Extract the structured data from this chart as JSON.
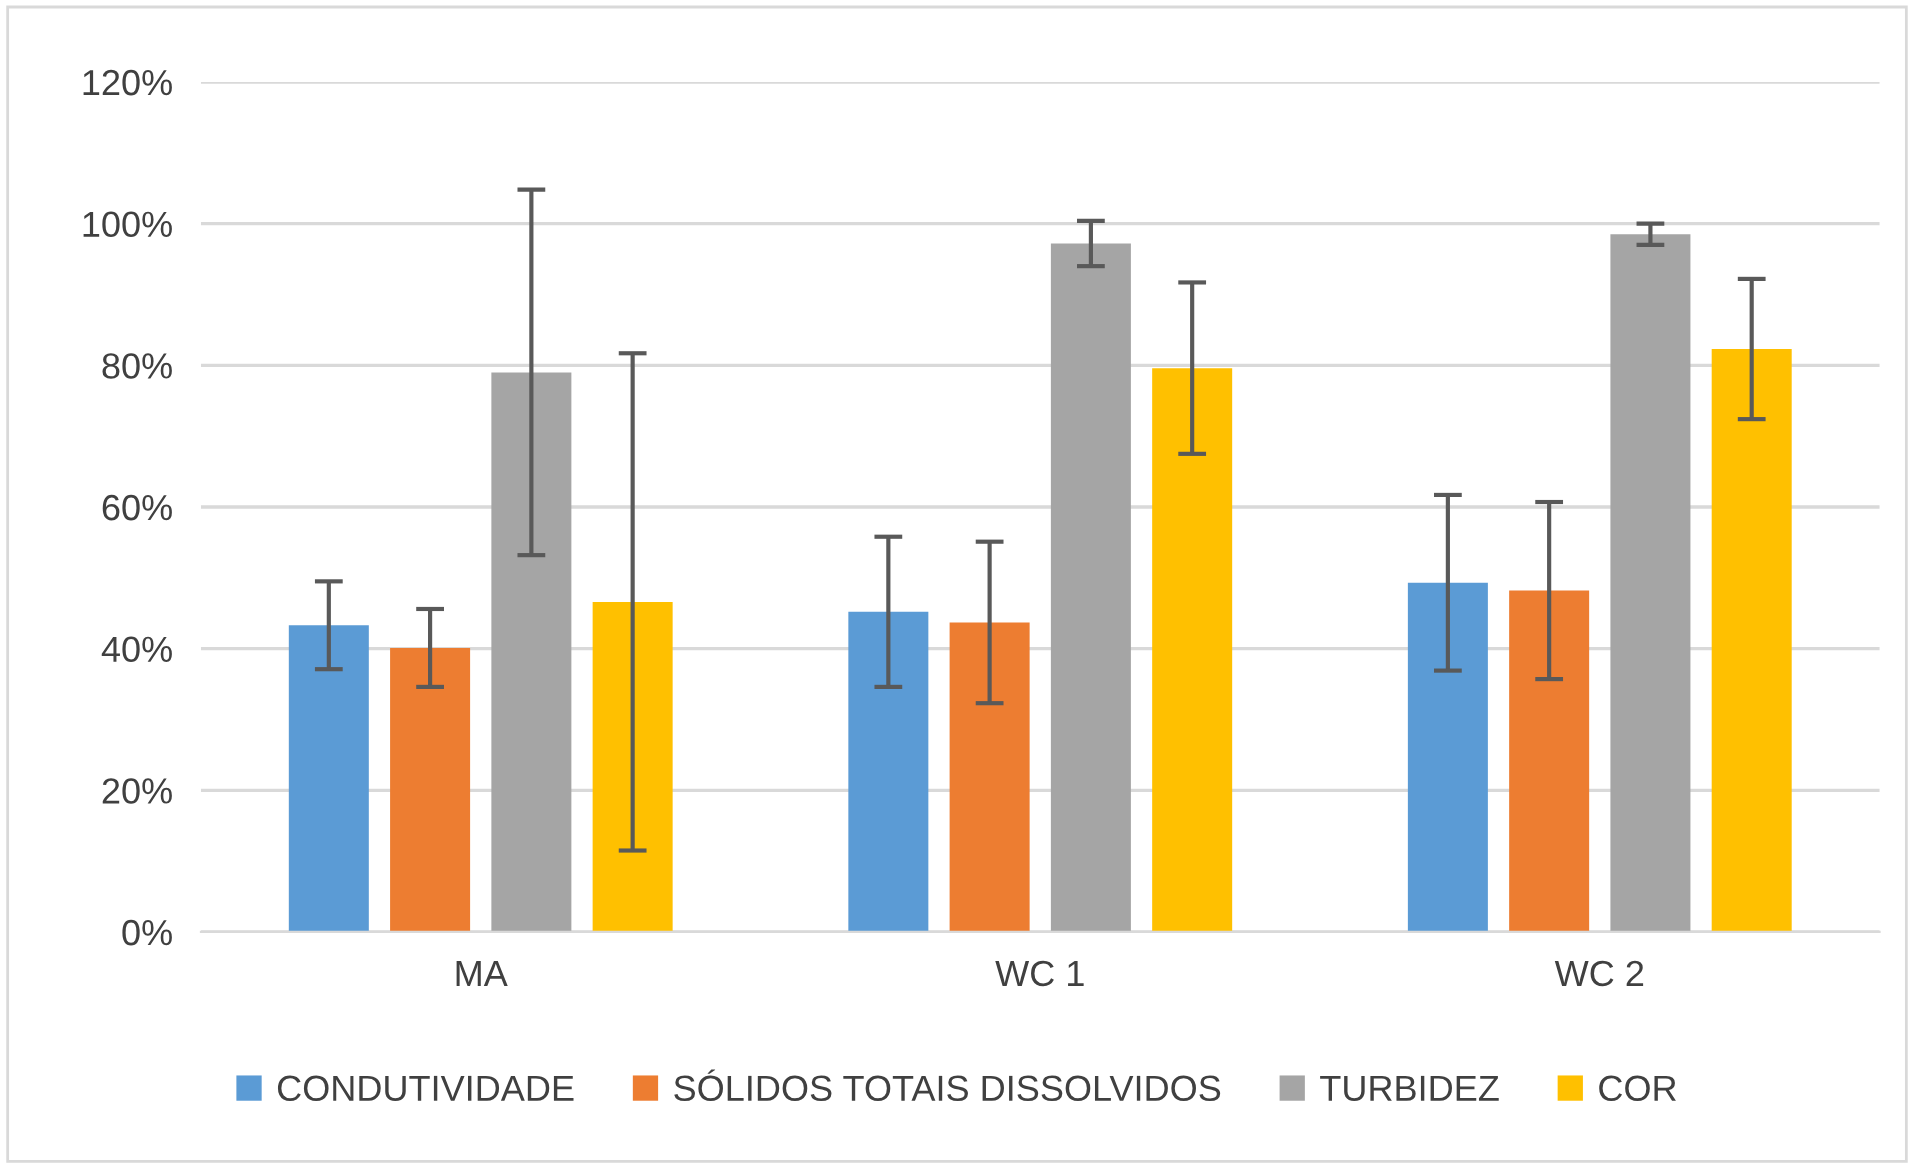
{
  "chart_data": {
    "type": "bar",
    "categories": [
      "MA",
      "WC 1",
      "WC 2"
    ],
    "series": [
      {
        "name": "CONDUTIVIDADE",
        "color": "#5b9bd5",
        "values": [
          43.3,
          45.2,
          49.3
        ],
        "errors": [
          6.2,
          10.6,
          12.4
        ]
      },
      {
        "name": "SÓLIDOS TOTAIS DISSOLVIDOS",
        "color": "#ed7d31",
        "values": [
          40.1,
          43.7,
          48.2
        ],
        "errors": [
          5.5,
          11.4,
          12.5
        ]
      },
      {
        "name": "TURBIDEZ",
        "color": "#a5a5a5",
        "values": [
          79.0,
          97.2,
          98.5
        ],
        "errors": [
          25.8,
          3.2,
          1.5
        ]
      },
      {
        "name": "COR",
        "color": "#ffc000",
        "values": [
          46.6,
          79.6,
          82.3
        ],
        "errors": [
          35.1,
          12.1,
          9.9
        ]
      }
    ],
    "ylim": [
      0,
      120
    ],
    "yticks": [
      {
        "value": 0,
        "label": "0%"
      },
      {
        "value": 20,
        "label": "20%"
      },
      {
        "value": 40,
        "label": "40%"
      },
      {
        "value": 60,
        "label": "60%"
      },
      {
        "value": 80,
        "label": "80%"
      },
      {
        "value": 100,
        "label": "100%"
      },
      {
        "value": 120,
        "label": "120%"
      }
    ],
    "grid": "y",
    "legend": "bottom"
  }
}
